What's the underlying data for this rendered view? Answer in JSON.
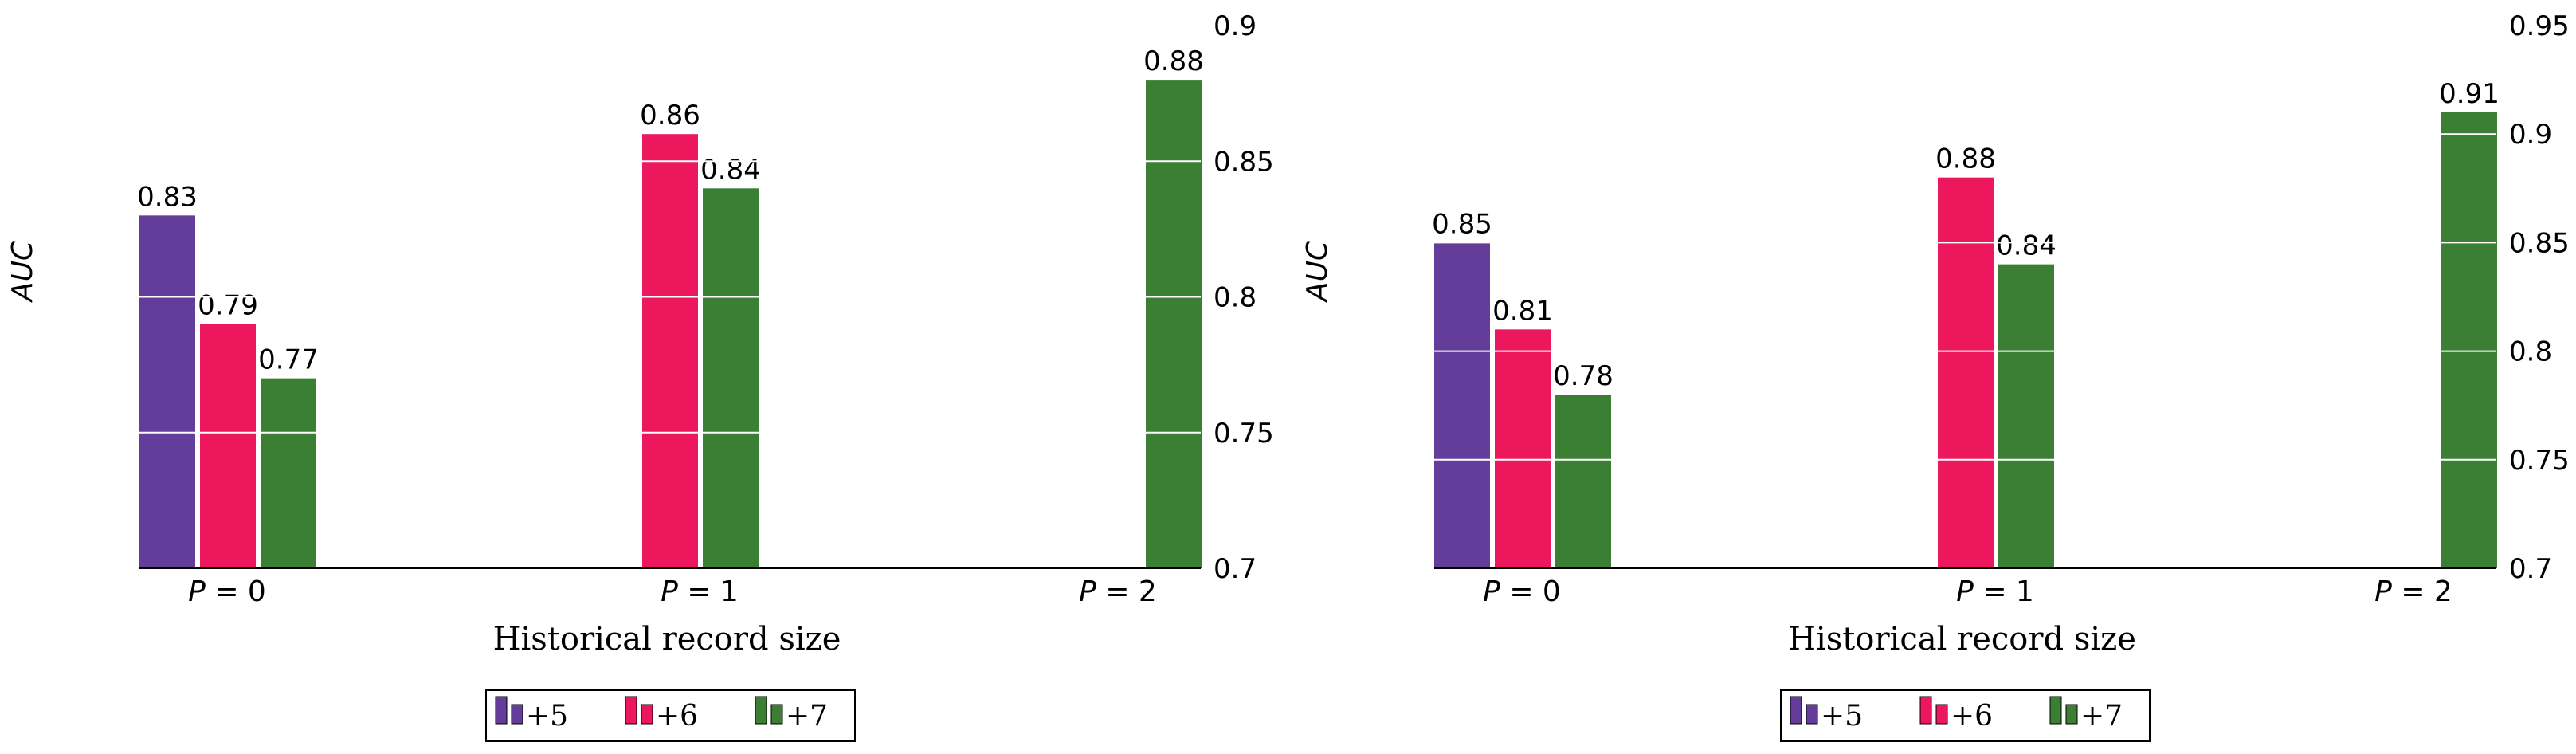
{
  "chart_data": [
    {
      "type": "bar",
      "categories": [
        "P = 0",
        "P = 1",
        "P = 2"
      ],
      "xlabel": "Historical record size",
      "ylabel": "AUC",
      "ylim": [
        0.7,
        0.9
      ],
      "yticks": [
        "0.7",
        "0.75",
        "0.8",
        "0.85",
        "0.9"
      ],
      "legend_position": "bottom-center",
      "grid": "horizontal white lines over bars",
      "series": [
        {
          "name": "+5",
          "color": "#643d9a",
          "values": [
            0.83,
            null,
            null
          ],
          "labels": [
            "0.83",
            "",
            ""
          ]
        },
        {
          "name": "+6",
          "color": "#ed175d",
          "values": [
            0.79,
            0.86,
            null
          ],
          "labels": [
            "0.79",
            "0.86",
            ""
          ]
        },
        {
          "name": "+7",
          "color": "#3a7f33",
          "values": [
            0.77,
            0.84,
            0.88
          ],
          "labels": [
            "0.77",
            "0.84",
            "0.88"
          ]
        }
      ]
    },
    {
      "type": "bar",
      "categories": [
        "P = 0",
        "P = 1",
        "P = 2"
      ],
      "xlabel": "Historical record size",
      "ylabel": "AUC",
      "ylim": [
        0.7,
        0.95
      ],
      "yticks": [
        "0.7",
        "0.75",
        "0.8",
        "0.85",
        "0.9",
        "0.95"
      ],
      "legend_position": "bottom-center",
      "grid": "horizontal white lines over bars",
      "series": [
        {
          "name": "+5",
          "color": "#643d9a",
          "values": [
            0.85,
            null,
            null
          ],
          "labels": [
            "0.85",
            "",
            ""
          ]
        },
        {
          "name": "+6",
          "color": "#ed175d",
          "values": [
            0.81,
            0.88,
            null
          ],
          "labels": [
            "0.81",
            "0.88",
            ""
          ]
        },
        {
          "name": "+7",
          "color": "#3a7f33",
          "values": [
            0.78,
            0.84,
            0.91
          ],
          "labels": [
            "0.78",
            "0.84",
            "0.91"
          ]
        }
      ]
    }
  ]
}
